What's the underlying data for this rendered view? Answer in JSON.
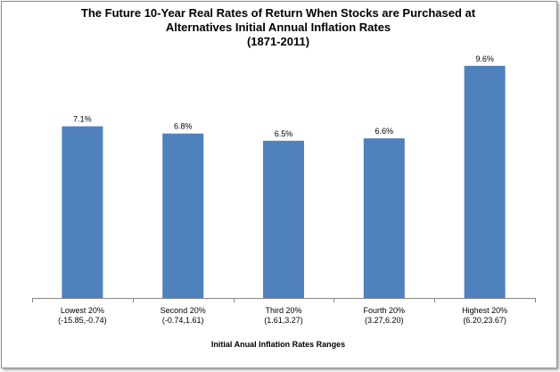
{
  "chart_data": {
    "type": "bar",
    "title_lines": [
      "The Future 10-Year Real Rates of Return When Stocks are Purchased at",
      "Alternatives Initial Annual Inflation Rates",
      "(1871-2011)"
    ],
    "xlabel": "Initial Anual Inflation Rates Ranges",
    "ylabel": "",
    "categories": [
      {
        "name": "Lowest 20%",
        "range": "(-15.85,-0.74)"
      },
      {
        "name": "Second 20%",
        "range": "(-0.74,1.61)"
      },
      {
        "name": "Third 20%",
        "range": "(1.61,3.27)"
      },
      {
        "name": "Fourth 20%",
        "range": "(3.27,6.20)"
      },
      {
        "name": "Highest 20%",
        "range": "(6.20,23.67)"
      }
    ],
    "values": [
      7.1,
      6.8,
      6.5,
      6.6,
      9.6
    ],
    "data_labels": [
      "7.1%",
      "6.8%",
      "6.5%",
      "6.6%",
      "9.6%"
    ],
    "unit": "%",
    "ylim": [
      0,
      10
    ],
    "grid": false,
    "legend": "none",
    "bar_color": "#4f81bd",
    "axis_color": "#868686"
  }
}
